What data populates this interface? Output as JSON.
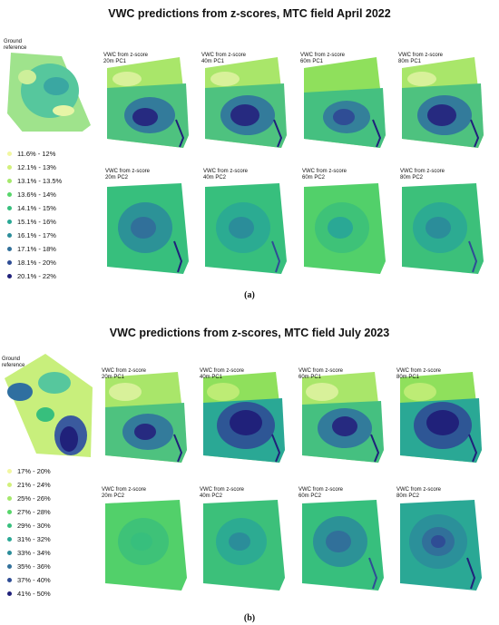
{
  "colors": [
    "#f2f7a0",
    "#d2f07a",
    "#a5e86c",
    "#57d66a",
    "#37bf7d",
    "#2aa895",
    "#2b8d9a",
    "#31709a",
    "#2f4d95",
    "#20217a"
  ],
  "panel_a": {
    "title": "VWC predictions from z-scores, MTC field April 2022",
    "caption": "(a)",
    "ground_label": "Ground\nreference",
    "legend": [
      "11.6% - 12%",
      "12.1% - 13%",
      "13.1% - 13.5%",
      "13.6% - 14%",
      "14.1% - 15%",
      "15.1% - 16%",
      "16.1% - 17%",
      "17.1% - 18%",
      "18.1% - 20%",
      "20.1% - 22%"
    ],
    "maps": [
      {
        "label": "VWC from z-score\n20m PC1"
      },
      {
        "label": "VWC from z-score\n40m PC1"
      },
      {
        "label": "VWC from z-score\n60m PC1"
      },
      {
        "label": "VWC from z-score\n80m PC1"
      },
      {
        "label": "VWC from z-score\n20m PC2"
      },
      {
        "label": "VWC from z-score\n40m PC2"
      },
      {
        "label": "VWC from z-score\n60m PC2"
      },
      {
        "label": "VWC from z-score\n80m PC2"
      }
    ]
  },
  "panel_b": {
    "title": "VWC predictions from z-scores, MTC field July 2023",
    "caption": "(b)",
    "ground_label": "Ground\nreference",
    "legend": [
      "17% - 20%",
      "21% - 24%",
      "25% - 26%",
      "27% - 28%",
      "29% - 30%",
      "31% - 32%",
      "33% - 34%",
      "35% - 36%",
      "37% - 40%",
      "41% - 50%"
    ],
    "maps": [
      {
        "label": "VWC from z-score\n20m PC1"
      },
      {
        "label": "VWC from z-score\n40m PC1"
      },
      {
        "label": "VWC from z-score\n60m PC1"
      },
      {
        "label": "VWC from z-score\n80m PC1"
      },
      {
        "label": "VWC from z-score\n20m PC2"
      },
      {
        "label": "VWC from z-score\n40m PC2"
      },
      {
        "label": "VWC from z-score\n60m PC2"
      },
      {
        "label": "VWC from z-score\n80m PC2"
      }
    ]
  }
}
